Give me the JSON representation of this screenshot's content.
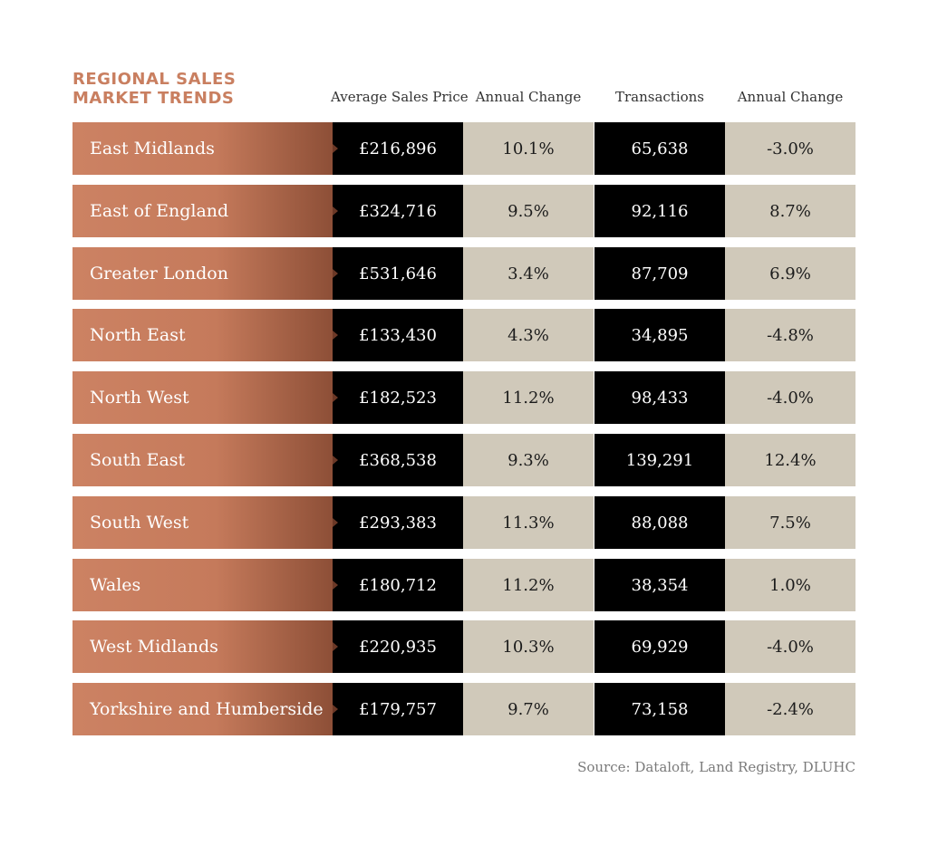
{
  "title": {
    "line1": "REGIONAL SALES",
    "line2": "MARKET TRENDS"
  },
  "columns": [
    "Average Sales Price",
    "Annual Change",
    "Transactions",
    "Annual Change"
  ],
  "colors": {
    "title": "#c97f60",
    "region_gradient_start": "#cc8263",
    "region_gradient_end": "#8d4f37",
    "dark_cell": "#000000",
    "light_cell": "#d0c9ba"
  },
  "chart_data": {
    "type": "table",
    "title": "REGIONAL SALES MARKET TRENDS",
    "columns": [
      "Average Sales Price",
      "Annual Change",
      "Transactions",
      "Annual Change"
    ],
    "rows": [
      {
        "region": "East Midlands",
        "price": "£216,896",
        "price_change": "10.1%",
        "transactions": "65,638",
        "transactions_change": "-3.0%"
      },
      {
        "region": "East of England",
        "price": "£324,716",
        "price_change": "9.5%",
        "transactions": "92,116",
        "transactions_change": "8.7%"
      },
      {
        "region": "Greater London",
        "price": "£531,646",
        "price_change": "3.4%",
        "transactions": "87,709",
        "transactions_change": "6.9%"
      },
      {
        "region": "North East",
        "price": "£133,430",
        "price_change": "4.3%",
        "transactions": "34,895",
        "transactions_change": "-4.8%"
      },
      {
        "region": "North West",
        "price": "£182,523",
        "price_change": "11.2%",
        "transactions": "98,433",
        "transactions_change": "-4.0%"
      },
      {
        "region": "South East",
        "price": "£368,538",
        "price_change": "9.3%",
        "transactions": "139,291",
        "transactions_change": "12.4%"
      },
      {
        "region": "South West",
        "price": "£293,383",
        "price_change": "11.3%",
        "transactions": "88,088",
        "transactions_change": "7.5%"
      },
      {
        "region": "Wales",
        "price": "£180,712",
        "price_change": "11.2%",
        "transactions": "38,354",
        "transactions_change": "1.0%"
      },
      {
        "region": "West Midlands",
        "price": "£220,935",
        "price_change": "10.3%",
        "transactions": "69,929",
        "transactions_change": "-4.0%"
      },
      {
        "region": "Yorkshire and Humberside",
        "price": "£179,757",
        "price_change": "9.7%",
        "transactions": "73,158",
        "transactions_change": "-2.4%"
      }
    ]
  },
  "source": "Source: Dataloft, Land Registry, DLUHC"
}
